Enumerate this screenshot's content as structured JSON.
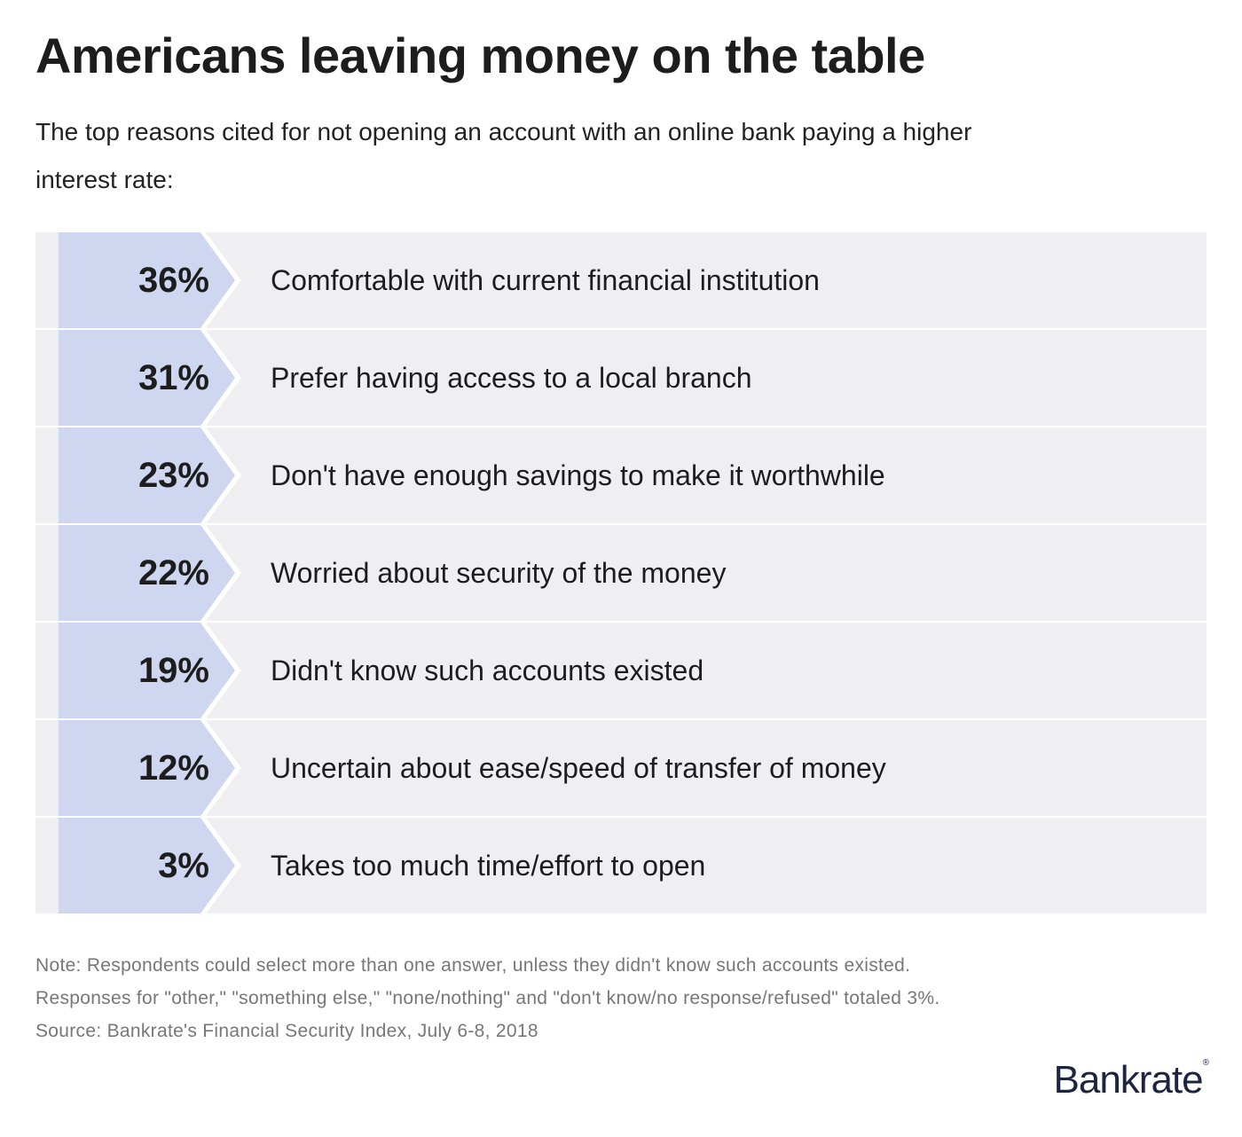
{
  "chart_data": {
    "type": "table",
    "title": "Americans leaving money on the table",
    "subtitle": "The top reasons cited for not opening an account with an online bank paying a higher interest rate:",
    "rows": [
      {
        "value": "36%",
        "label": "Comfortable with current financial institution"
      },
      {
        "value": "31%",
        "label": "Prefer having access to a local branch"
      },
      {
        "value": "23%",
        "label": "Don't have enough savings to make it worthwhile"
      },
      {
        "value": "22%",
        "label": "Worried about security of the money"
      },
      {
        "value": "19%",
        "label": "Didn't know such accounts existed"
      },
      {
        "value": "12%",
        "label": "Uncertain about ease/speed of transfer of money"
      },
      {
        "value": "3%",
        "label": "Takes too much time/effort to open"
      }
    ],
    "notes": [
      "Note: Respondents could select more than one answer, unless they didn't know such accounts existed.",
      "Responses for \"other,\" \"something else,\" \"none/nothing\" and \"don't know/no response/refused\" totaled 3%.",
      "Source: Bankrate's Financial Security Index, July 6-8, 2018"
    ],
    "colors": {
      "row_bg": "#efeff2",
      "badge": "#ced6f0",
      "logo": "#1b2540"
    }
  },
  "logo": "Bankrate"
}
